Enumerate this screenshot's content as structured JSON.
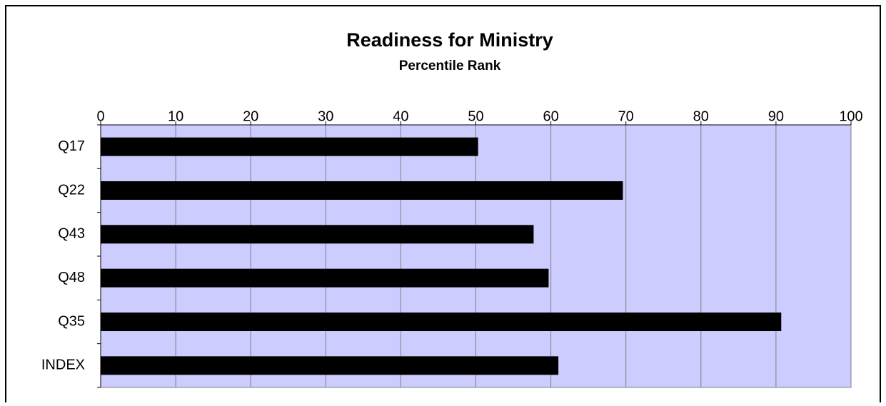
{
  "chart_data": {
    "type": "hbar",
    "title": "Readiness for Ministry",
    "subtitle": "Percentile Rank",
    "categories": [
      "Q17",
      "Q22",
      "Q43",
      "Q48",
      "Q35",
      "INDEX"
    ],
    "values": [
      50.3,
      69.6,
      57.7,
      59.7,
      90.7,
      61.0
    ],
    "color": "#000000",
    "xlim": [
      0,
      100
    ],
    "xticks": [
      0,
      10,
      20,
      30,
      40,
      50,
      60,
      70,
      80,
      90,
      100
    ],
    "grid": true,
    "plot_background": "#ccccff"
  }
}
